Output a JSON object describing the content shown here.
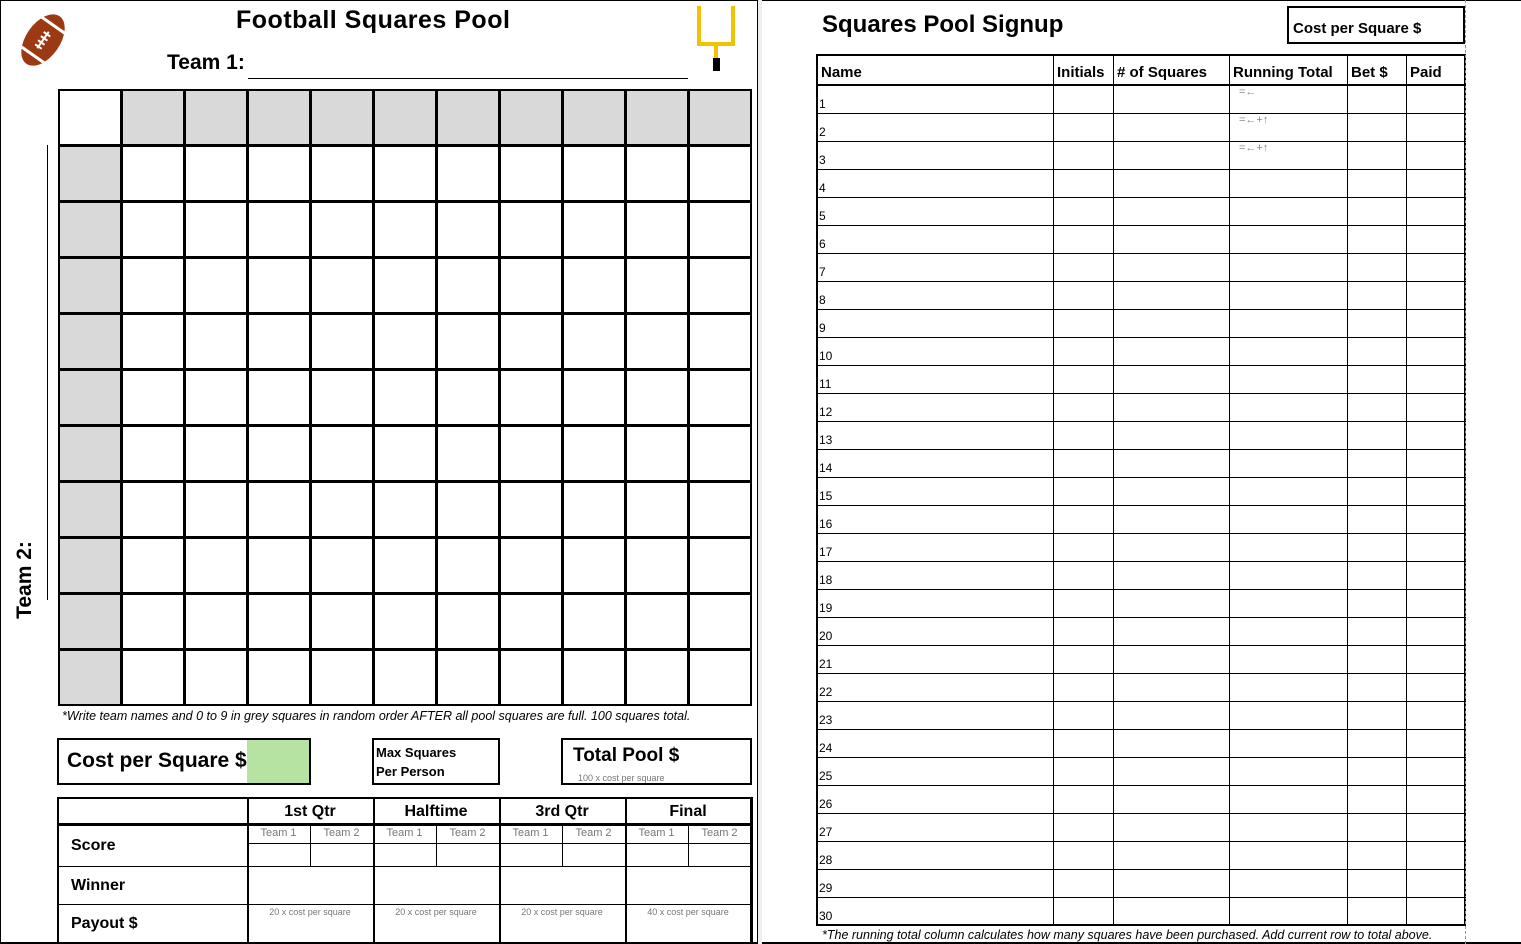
{
  "pool": {
    "title": "Football Squares Pool",
    "team1_label": "Team 1:",
    "team2_label": "Team 2:",
    "instructions": "*Write team names and 0 to 9 in grey squares in random order AFTER all pool squares are full. 100 squares total.",
    "cost_label": "Cost per Square $",
    "cost_color": "#b6e3a1",
    "max_label_1": "Max Squares",
    "max_label_2": "Per Person",
    "total_label": "Total Pool $",
    "total_note": "100 x cost per square",
    "quarters": [
      "1st Qtr",
      "Halftime",
      "3rd Qtr",
      "Final"
    ],
    "team_cols": [
      "Team 1",
      "Team 2"
    ],
    "row_labels": {
      "score": "Score",
      "winner": "Winner",
      "payout": "Payout $"
    },
    "payouts": [
      "20 x cost per square",
      "20 x cost per square",
      "20 x cost per square",
      "40 x cost per square"
    ],
    "icons": [
      "football-icon",
      "goalpost-icon"
    ]
  },
  "signup": {
    "title": "Squares Pool Signup",
    "cost_label": "Cost per Square $",
    "columns": [
      "Name",
      "Initials",
      "# of Squares",
      "Running Total",
      "Bet $",
      "Paid"
    ],
    "running_formulas": [
      "=←",
      "=←+↑",
      "=←+↑"
    ],
    "footnote": "*The running total column calculates how many squares have been purchased. Add current row to total above."
  }
}
